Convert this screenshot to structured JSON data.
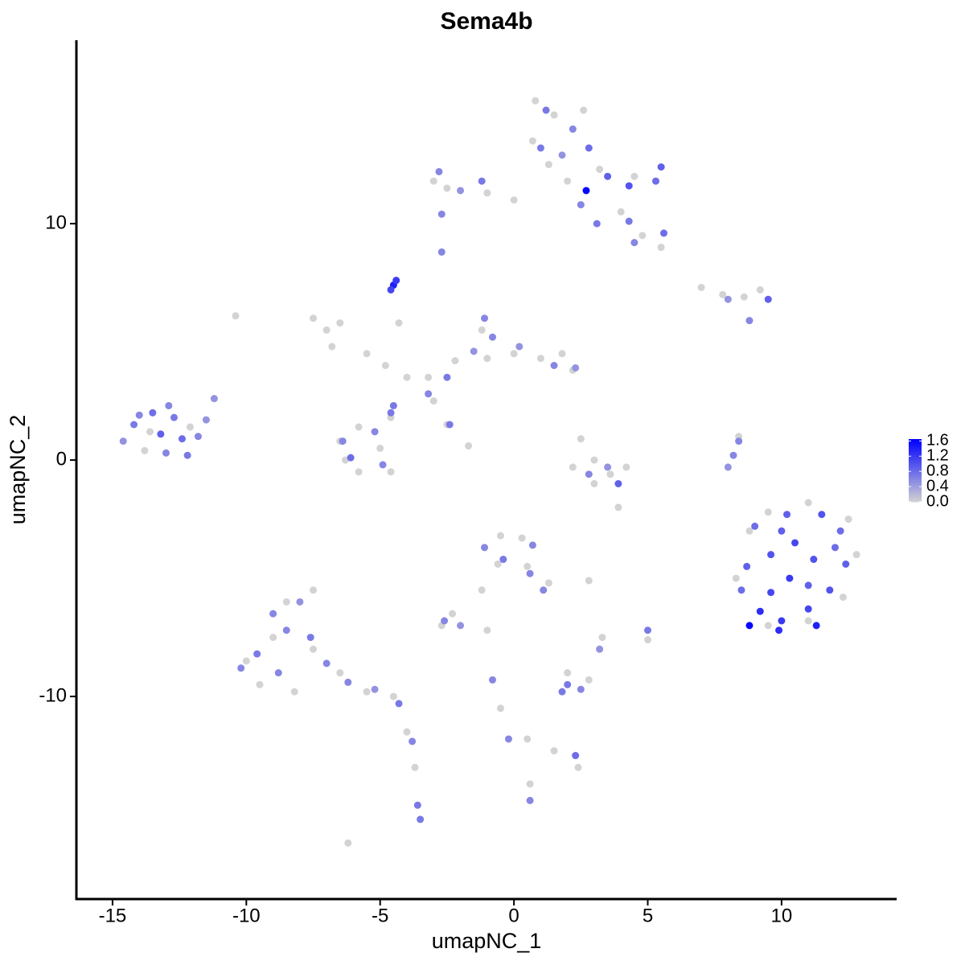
{
  "chart_data": {
    "type": "scatter",
    "title": "Sema4b",
    "x_label": "umapNC_1",
    "y_label": "umapNC_2",
    "xlim": [
      -16.35,
      14.3
    ],
    "ylim": [
      -18.57,
      17.76
    ],
    "xticks": [
      -15,
      -10,
      -5,
      0,
      5,
      10
    ],
    "yticks": [
      -10,
      0,
      10
    ],
    "color_low": "#d3d3d3",
    "color_high": "#0000ff",
    "clim": [
      0,
      1.65
    ],
    "colorbar_ticks": [
      {
        "value": 0,
        "label": "0.0"
      },
      0.4,
      0.8,
      1.2,
      1.6
    ],
    "x": [
      0.8,
      1.5,
      2.6,
      0.7,
      1.3,
      2.0,
      3.2,
      4.5,
      4.0,
      4.8,
      5.5,
      -2.5,
      -1.0,
      0.0,
      -3.0,
      7.0,
      7.8,
      8.6,
      9.2,
      -7.5,
      -7.0,
      -6.5,
      -6.8,
      -5.5,
      -4.8,
      -4.0,
      -3.2,
      -2.2,
      -1.2,
      -1.0,
      0.0,
      1.0,
      1.8,
      2.2,
      -3.0,
      -4.3,
      -2.5,
      -1.7,
      -6.5,
      -5.8,
      -5.0,
      -4.6,
      -5.8,
      -6.3,
      -4.6,
      2.5,
      3.0,
      2.2,
      3.6,
      4.2,
      3.0,
      8.4,
      3.9,
      -10.4,
      -13.6,
      -13.8,
      -12.1,
      9.5,
      11,
      12.5,
      12.8,
      12.3,
      11.0,
      9.5,
      8.3,
      8.8,
      -10.0,
      -9.5,
      -8.5,
      -7.5,
      -9.0,
      -7.5,
      -6.5,
      -5.5,
      -4.5,
      -8.2,
      -4.0,
      -3.7,
      -6.2,
      -0.5,
      0.3,
      0.5,
      -0.6,
      -1.2,
      -2.3,
      -2.7,
      1.3,
      2.8,
      -1.0,
      5.0,
      3.3,
      2.0,
      2.8,
      -0.5,
      0.5,
      1.5,
      2.4,
      0.6,
      -14.6,
      -14.2,
      -13.5,
      -13.2,
      -13.0,
      -12.7,
      -12.4,
      -11.8,
      -11.5,
      -11.2,
      -12.9,
      -12.2,
      -14.0,
      1.2,
      2.2,
      1.0,
      1.8,
      2.8,
      3.5,
      4.3,
      5.3,
      5.5,
      2.7,
      4.3,
      5.6,
      4.5,
      -2.8,
      -2.0,
      -1.2,
      2.5,
      -2.7,
      -2.7,
      3.1,
      9.5,
      8.0,
      8.8,
      -4.5,
      -4.4,
      -4.6,
      -1.1,
      -0.8,
      -1.5,
      -2.5,
      -3.2,
      -4.5,
      1.5,
      2.3,
      0.2,
      -2.4,
      -6.1,
      -5.2,
      -4.9,
      -4.6,
      -6.4,
      3.9,
      2.8,
      3.5,
      8.4,
      8.2,
      8.0,
      9.0,
      10.2,
      11.5,
      12.2,
      12.4,
      11.8,
      11.0,
      10.0,
      8.8,
      9.2,
      8.5,
      8.7,
      9.6,
      10.5,
      11.2,
      10.3,
      9.6,
      11.0,
      12.0,
      10.0,
      11.3,
      9.9,
      -10.2,
      -9.6,
      -9.0,
      -8.5,
      -8.0,
      -7.6,
      -8.8,
      -7.0,
      -6.2,
      -5.2,
      -4.3,
      -3.6,
      -3.5,
      -3.8,
      -1.1,
      -0.4,
      0.7,
      0.6,
      1.1,
      -2.6,
      -2.0,
      5.0,
      3.2,
      2.0,
      2.5,
      1.8,
      -0.8,
      -0.2,
      2.3,
      0.6
    ],
    "y": [
      15.2,
      14.6,
      14.8,
      13.5,
      12.5,
      11.8,
      12.3,
      12.0,
      10.5,
      9.5,
      9.0,
      11.5,
      11.3,
      11.0,
      11.8,
      7.3,
      7.0,
      6.9,
      7.2,
      6.0,
      5.5,
      5.8,
      4.8,
      4.5,
      4.0,
      3.5,
      3.5,
      4.2,
      5.5,
      4.3,
      4.5,
      4.3,
      4.5,
      3.8,
      2.5,
      5.8,
      1.5,
      0.6,
      0.8,
      1.4,
      0.5,
      -0.5,
      -0.5,
      0.0,
      1.8,
      0.9,
      0.0,
      -0.3,
      -0.6,
      -0.3,
      -1.0,
      1.0,
      -2.0,
      6.1,
      1.2,
      0.4,
      1.4,
      -2.2,
      -1.8,
      -2.5,
      -4.0,
      -5.8,
      -6.8,
      -7.0,
      -5.0,
      -3.0,
      -8.5,
      -9.5,
      -6.0,
      -5.5,
      -7.5,
      -8.0,
      -9.0,
      -9.8,
      -10.0,
      -9.8,
      -11.5,
      -13.0,
      -16.2,
      -3.2,
      -3.3,
      -4.5,
      -4.4,
      -5.5,
      -6.5,
      -7.0,
      -5.2,
      -5.1,
      -7.2,
      -7.6,
      -7.5,
      -9.0,
      -9.3,
      -10.5,
      -11.8,
      -12.3,
      -13.0,
      -13.7,
      0.8,
      1.5,
      2.0,
      1.1,
      0.3,
      1.8,
      0.9,
      1.0,
      1.7,
      2.6,
      2.3,
      0.2,
      1.9,
      14.8,
      14.0,
      13.2,
      12.9,
      13.2,
      12.0,
      11.6,
      11.8,
      12.4,
      11.4,
      10.1,
      9.6,
      9.2,
      12.2,
      11.4,
      11.8,
      10.8,
      10.4,
      8.8,
      10.0,
      6.8,
      6.8,
      5.9,
      7.4,
      7.6,
      7.2,
      6.0,
      5.2,
      4.6,
      3.5,
      2.8,
      2.3,
      4.0,
      3.9,
      4.8,
      1.5,
      0.1,
      1.2,
      -0.2,
      2.0,
      0.8,
      -1.0,
      -0.6,
      -0.3,
      0.8,
      0.2,
      -0.3,
      -2.8,
      -2.3,
      -2.3,
      -3.0,
      -4.4,
      -5.5,
      -6.3,
      -6.8,
      -7.0,
      -6.4,
      -5.5,
      -4.5,
      -4.0,
      -3.5,
      -4.2,
      -5.0,
      -5.6,
      -5.3,
      -3.7,
      -3.0,
      -7.0,
      -7.2,
      -8.8,
      -8.2,
      -6.5,
      -7.2,
      -6.0,
      -7.5,
      -9.0,
      -8.6,
      -9.4,
      -9.7,
      -10.3,
      -14.6,
      -15.2,
      -11.9,
      -3.7,
      -4.2,
      -3.6,
      -4.8,
      -5.5,
      -6.8,
      -7.0,
      -7.2,
      -8.0,
      -9.5,
      -9.7,
      -9.8,
      -9.3,
      -11.8,
      -12.5,
      -14.4
    ],
    "values": [
      0,
      0,
      0,
      0,
      0,
      0,
      0,
      0,
      0,
      0,
      0,
      0,
      0,
      0,
      0,
      0,
      0,
      0,
      0,
      0,
      0,
      0,
      0,
      0,
      0,
      0,
      0,
      0,
      0,
      0,
      0,
      0,
      0,
      0,
      0,
      0,
      0,
      0,
      0,
      0,
      0,
      0,
      0,
      0,
      0,
      0,
      0,
      0,
      0,
      0,
      0,
      0,
      0,
      0,
      0,
      0,
      0,
      0,
      0,
      0,
      0,
      0,
      0,
      0,
      0,
      0,
      0,
      0,
      0,
      0,
      0,
      0,
      0,
      0,
      0,
      0,
      0,
      0,
      0,
      0,
      0,
      0,
      0,
      0,
      0,
      0,
      0,
      0,
      0,
      0,
      0,
      0,
      0,
      0,
      0,
      0,
      0,
      0,
      0.5,
      0.7,
      0.8,
      0.9,
      0.6,
      0.7,
      0.8,
      0.6,
      0.5,
      0.5,
      0.6,
      0.7,
      0.6,
      0.7,
      0.6,
      0.7,
      0.5,
      0.8,
      0.9,
      1.0,
      0.8,
      0.9,
      1.6,
      0.7,
      0.8,
      0.6,
      0.6,
      0.5,
      0.7,
      0.6,
      0.6,
      0.6,
      0.7,
      0.9,
      0.5,
      0.6,
      1.4,
      1.2,
      1.1,
      0.6,
      0.6,
      0.5,
      0.7,
      0.6,
      0.7,
      0.6,
      0.5,
      0.5,
      0.7,
      0.8,
      0.6,
      0.6,
      0.7,
      0.6,
      0.9,
      0.6,
      0.5,
      0.6,
      0.6,
      0.5,
      0.8,
      0.9,
      1.0,
      0.8,
      0.9,
      1.0,
      1.1,
      1.2,
      1.6,
      1.3,
      0.8,
      0.9,
      1.0,
      1.1,
      1.0,
      1.2,
      1.1,
      0.9,
      0.8,
      0.9,
      1.4,
      1.3,
      0.6,
      0.7,
      0.6,
      0.6,
      0.5,
      0.7,
      0.6,
      0.6,
      0.6,
      0.5,
      0.7,
      0.7,
      0.7,
      0.6,
      0.6,
      0.7,
      0.6,
      0.6,
      0.6,
      0.6,
      0.5,
      0.7,
      0.5,
      0.7,
      0.6,
      0.7,
      0.6,
      0.6,
      0.8,
      0.6
    ]
  }
}
